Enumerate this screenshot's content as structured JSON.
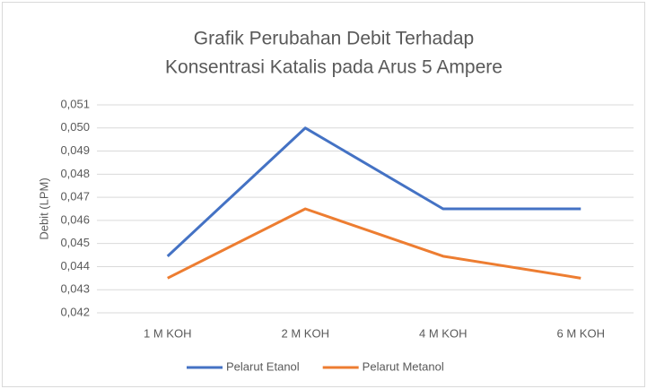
{
  "chart_data": {
    "type": "line",
    "title": [
      "Grafik Perubahan Debit Terhadap",
      "Konsentrasi Katalis pada Arus 5 Ampere"
    ],
    "y_label": "Debit (LPM)",
    "categories": [
      "1 M KOH",
      "2 M KOH",
      "4 M KOH",
      "6 M KOH"
    ],
    "series": [
      {
        "name": "Pelarut Etanol",
        "color": "#4472c4",
        "values": [
          0.04445,
          0.05,
          0.0465,
          0.0465
        ]
      },
      {
        "name": "Pelarut Metanol",
        "color": "#ed7d31",
        "values": [
          0.0435,
          0.0465,
          0.04445,
          0.0435
        ]
      }
    ],
    "ylim": [
      0.042,
      0.051
    ],
    "yticks": [
      {
        "value": 0.042,
        "label": "0,042"
      },
      {
        "value": 0.043,
        "label": "0,043"
      },
      {
        "value": 0.044,
        "label": "0,044"
      },
      {
        "value": 0.045,
        "label": "0,045"
      },
      {
        "value": 0.046,
        "label": "0,046"
      },
      {
        "value": 0.047,
        "label": "0,047"
      },
      {
        "value": 0.048,
        "label": "0,048"
      },
      {
        "value": 0.049,
        "label": "0,049"
      },
      {
        "value": 0.05,
        "label": "0,050"
      },
      {
        "value": 0.051,
        "label": "0,051"
      }
    ],
    "grid": true,
    "legend": "bottom"
  }
}
